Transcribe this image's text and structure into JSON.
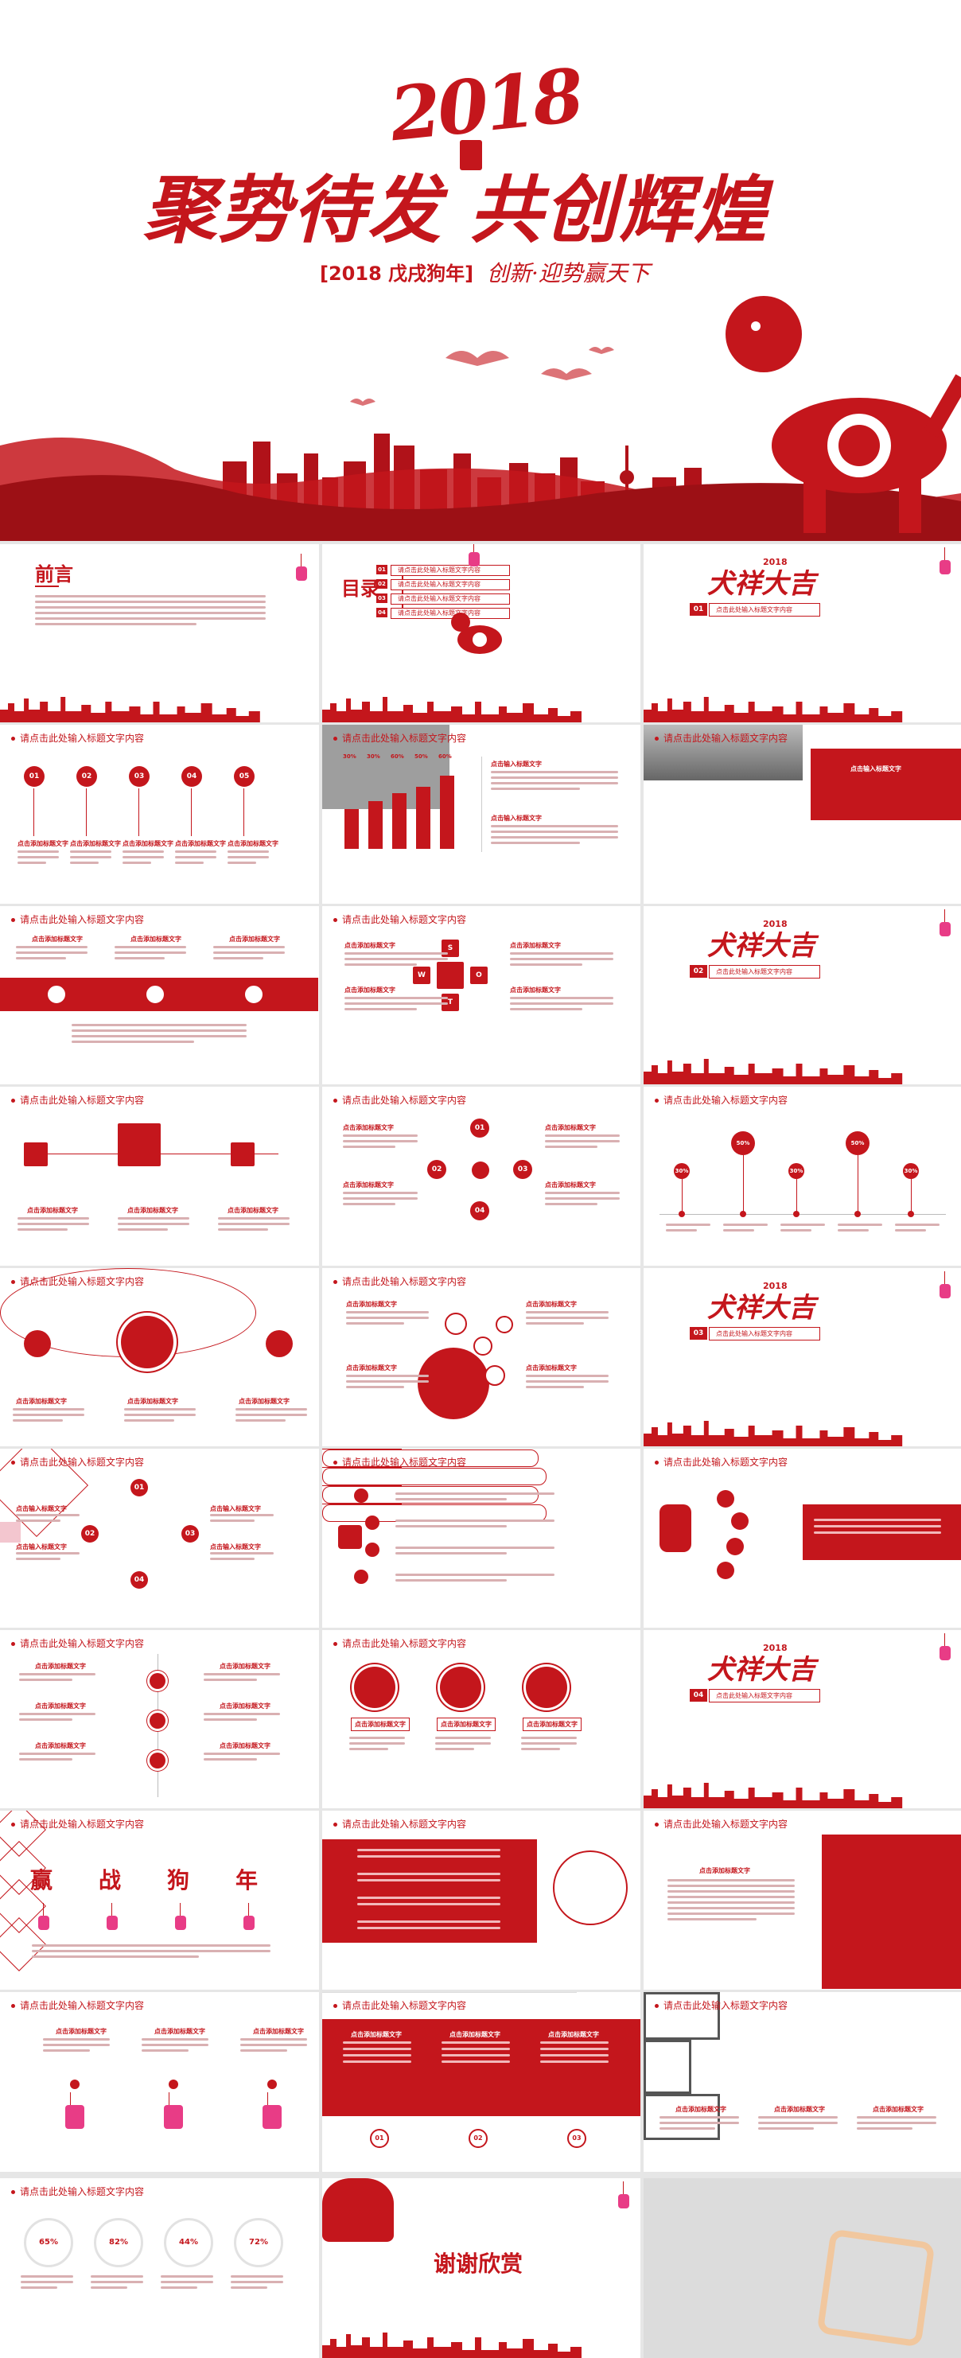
{
  "hero": {
    "year": "2018",
    "title": "聚势待发 共创辉煌",
    "subtitle_left": "[2018  戊戌狗年]",
    "subtitle_right": "创新·迎势赢天下"
  },
  "slides": {
    "preface_title": "前言",
    "toc_title": "目录",
    "toc_items": [
      "请点击此处输入标题文字内容",
      "请点击此处输入标题文字内容",
      "请点击此处输入标题文字内容",
      "请点击此处输入标题文字内容"
    ],
    "toc_nums": [
      "01",
      "02",
      "03",
      "04"
    ],
    "section_logo": "2018",
    "section_script": "犬祥大吉",
    "section_placeholder": "点击此处输入标题文字内容",
    "section_nums": [
      "01",
      "02",
      "03",
      "04"
    ],
    "slide_title": "请点击此处输入标题文字内容",
    "slide_title_alt": "请点击此处输入标题文字内容",
    "circle_nums": [
      "01",
      "02",
      "03",
      "04",
      "05"
    ],
    "caption": "点击添加标题文字",
    "caption_alt": "点击输入标题文字",
    "bar_labels": [
      "30%",
      "30%",
      "60%",
      "50%",
      "60%"
    ],
    "swot": [
      "S",
      "W",
      "O",
      "T"
    ],
    "pins": [
      "30%",
      "50%",
      "30%",
      "50%",
      "30%"
    ],
    "grid_nums": [
      "01",
      "02",
      "03",
      "04"
    ],
    "words": [
      "赢",
      "战",
      "狗",
      "年"
    ],
    "pct": [
      "65%",
      "82%",
      "44%",
      "72%"
    ],
    "step_nums": [
      "01",
      "02",
      "03"
    ],
    "thanks": "谢谢欣赏"
  },
  "colors": {
    "accent": "#c4161c",
    "pink": "#e83c86",
    "grey": "#e6e6e6"
  }
}
